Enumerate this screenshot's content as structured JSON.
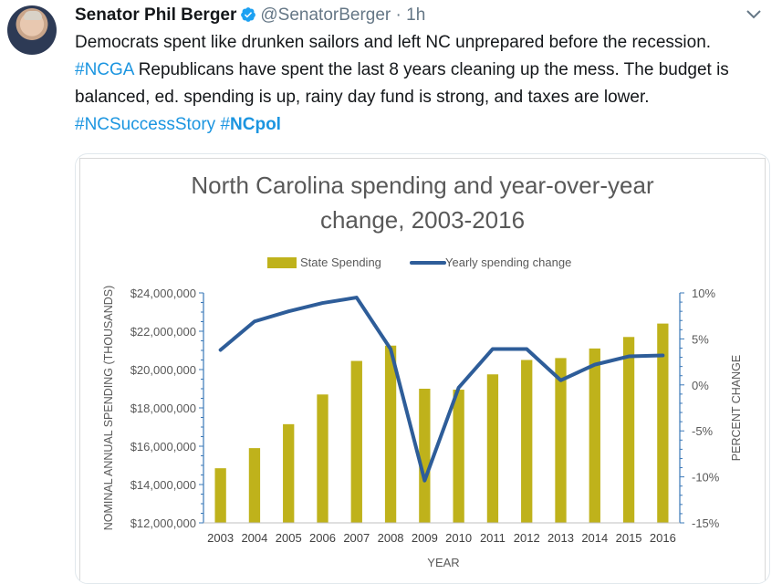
{
  "tweet": {
    "display_name": "Senator Phil Berger",
    "handle": "@SenatorBerger",
    "separator": "·",
    "time": "1h",
    "text_parts": [
      {
        "text": "Democrats spent like drunken sailors and left NC unprepared before the recession. ",
        "type": "text"
      },
      {
        "text": "#NCGA",
        "type": "hashtag"
      },
      {
        "text": " Republicans have spent the last 8 years cleaning up the mess. The budget is balanced, ed. spending is up, rainy day fund is strong, and taxes are lower. ",
        "type": "text"
      },
      {
        "text": "#NCSuccessStory",
        "type": "hashtag"
      },
      {
        "text": " ",
        "type": "text"
      },
      {
        "text": "#",
        "type": "hashtag"
      },
      {
        "text": "NCpol",
        "type": "hashtag-bold"
      }
    ],
    "icons": {
      "verified": "verified-badge-icon",
      "menu": "chevron-down-icon",
      "avatar": "avatar"
    },
    "colors": {
      "link": "#1b95e0",
      "muted": "#657786",
      "verified": "#1da1f2"
    }
  },
  "chart_data": {
    "type": "bar+line",
    "title_lines": [
      "North Carolina spending and year-over-year",
      "change, 2003-2016"
    ],
    "xlabel": "YEAR",
    "ylabel": "NOMINAL ANNUAL SPENDING (THOUSANDS)",
    "y2label": "PERCENT CHANGE",
    "categories": [
      "2003",
      "2004",
      "2005",
      "2006",
      "2007",
      "2008",
      "2009",
      "2010",
      "2011",
      "2012",
      "2013",
      "2014",
      "2015",
      "2016"
    ],
    "series": [
      {
        "name": "State Spending",
        "kind": "bar",
        "axis": "left",
        "color": "#bfb21b",
        "values": [
          14850000,
          15900000,
          17150000,
          18700000,
          20450000,
          21250000,
          19000000,
          18950000,
          19750000,
          20500000,
          20600000,
          21100000,
          21700000,
          22400000
        ]
      },
      {
        "name": "Yearly spending change",
        "kind": "line",
        "axis": "right",
        "color": "#2e5d99",
        "values": [
          3.8,
          6.9,
          8.0,
          8.9,
          9.5,
          3.9,
          -10.4,
          -0.3,
          3.9,
          3.9,
          0.5,
          2.2,
          3.1,
          3.2
        ]
      }
    ],
    "y_left": {
      "min": 12000000,
      "max": 24000000,
      "ticks": [
        12000000,
        14000000,
        16000000,
        18000000,
        20000000,
        22000000,
        24000000
      ],
      "tick_labels": [
        "$12,000,000",
        "$14,000,000",
        "$16,000,000",
        "$18,000,000",
        "$20,000,000",
        "$22,000,000",
        "$24,000,000"
      ]
    },
    "y_right": {
      "min": -15,
      "max": 10,
      "ticks": [
        -15,
        -10,
        -5,
        0,
        5,
        10
      ],
      "tick_labels": [
        "-15%",
        "-10%",
        "-5%",
        "0%",
        "5%",
        "10%"
      ]
    },
    "legend_position": "top-center",
    "grid": false
  }
}
